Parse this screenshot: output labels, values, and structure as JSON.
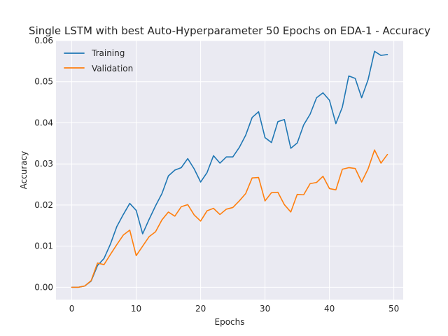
{
  "chart_data": {
    "type": "line",
    "title": "Single LSTM with best Auto-Hyperparameter 50 Epochs on EDA-1 - Accuracy",
    "xlabel": "Epochs",
    "ylabel": "Accuracy",
    "xlim": [
      -2.45,
      51.45
    ],
    "ylim": [
      -0.003,
      0.06
    ],
    "xticks": [
      0,
      10,
      20,
      30,
      40,
      50
    ],
    "yticks": [
      0.0,
      0.01,
      0.02,
      0.03,
      0.04,
      0.05,
      0.06
    ],
    "ytick_labels": [
      "0.00",
      "0.01",
      "0.02",
      "0.03",
      "0.04",
      "0.05",
      "0.06"
    ],
    "grid": true,
    "legend_position": "upper-left",
    "x": [
      0,
      1,
      2,
      3,
      4,
      5,
      6,
      7,
      8,
      9,
      10,
      11,
      12,
      13,
      14,
      15,
      16,
      17,
      18,
      19,
      20,
      21,
      22,
      23,
      24,
      25,
      26,
      27,
      28,
      29,
      30,
      31,
      32,
      33,
      34,
      35,
      36,
      37,
      38,
      39,
      40,
      41,
      42,
      43,
      44,
      45,
      46,
      47,
      48,
      49
    ],
    "series": [
      {
        "name": "Training",
        "color": "#1f77b4",
        "values": [
          0.0,
          0.0,
          0.0003,
          0.0015,
          0.0053,
          0.007,
          0.0105,
          0.0148,
          0.0177,
          0.0204,
          0.0187,
          0.013,
          0.0165,
          0.0198,
          0.0228,
          0.0271,
          0.0285,
          0.0291,
          0.0313,
          0.0288,
          0.0256,
          0.0279,
          0.032,
          0.0302,
          0.0317,
          0.0317,
          0.034,
          0.037,
          0.0413,
          0.0427,
          0.0364,
          0.0352,
          0.0403,
          0.0408,
          0.0338,
          0.0351,
          0.0395,
          0.0421,
          0.0461,
          0.0473,
          0.0455,
          0.0398,
          0.0438,
          0.0514,
          0.0508,
          0.0461,
          0.0505,
          0.0574,
          0.0564,
          0.0566
        ]
      },
      {
        "name": "Validation",
        "color": "#ff7f0e",
        "values": [
          0.0,
          0.0,
          0.0003,
          0.0016,
          0.0059,
          0.0055,
          0.008,
          0.0104,
          0.0127,
          0.0139,
          0.0077,
          0.01,
          0.0123,
          0.0135,
          0.0164,
          0.0183,
          0.0173,
          0.0196,
          0.0201,
          0.0176,
          0.0161,
          0.0186,
          0.0192,
          0.0177,
          0.019,
          0.0194,
          0.021,
          0.0228,
          0.0266,
          0.0267,
          0.021,
          0.023,
          0.0231,
          0.0201,
          0.0183,
          0.0226,
          0.0225,
          0.0252,
          0.0255,
          0.027,
          0.024,
          0.0237,
          0.0287,
          0.0291,
          0.0289,
          0.0256,
          0.0288,
          0.0334,
          0.0302,
          0.0323
        ]
      }
    ]
  }
}
